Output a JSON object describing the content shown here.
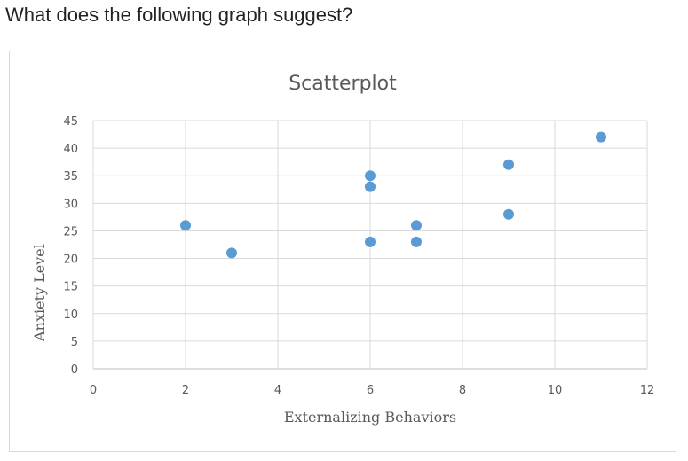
{
  "question": "What does the following graph suggest?",
  "chart_data": {
    "type": "scatter",
    "title": "Scatterplot",
    "xlabel": "Externalizing Behaviors",
    "ylabel": "Anxiety Level",
    "xlim": [
      0,
      12
    ],
    "ylim": [
      0,
      45
    ],
    "xticks": [
      0,
      2,
      4,
      6,
      8,
      10,
      12
    ],
    "yticks": [
      0,
      5,
      10,
      15,
      20,
      25,
      30,
      35,
      40,
      45
    ],
    "grid": true,
    "marker_color": "#5b9bd5",
    "points": [
      {
        "x": 2,
        "y": 26
      },
      {
        "x": 3,
        "y": 21
      },
      {
        "x": 6,
        "y": 35
      },
      {
        "x": 6,
        "y": 33
      },
      {
        "x": 6,
        "y": 23
      },
      {
        "x": 7,
        "y": 26
      },
      {
        "x": 7,
        "y": 23
      },
      {
        "x": 9,
        "y": 37
      },
      {
        "x": 9,
        "y": 28
      },
      {
        "x": 11,
        "y": 42
      }
    ]
  }
}
